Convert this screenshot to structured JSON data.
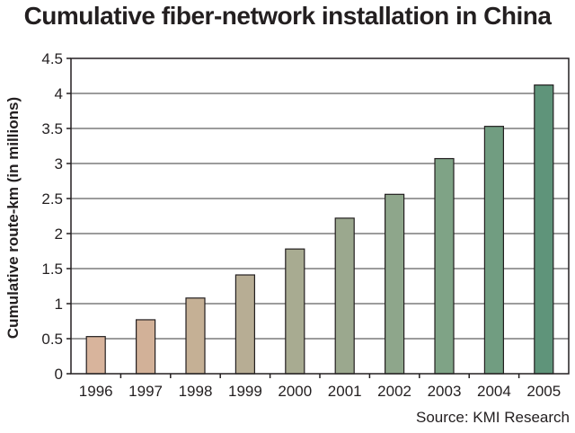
{
  "chart_data": {
    "type": "bar",
    "title": "Cumulative fiber-network installation in China",
    "xlabel": "",
    "ylabel": "Cumulative route-km (in millions)",
    "categories": [
      "1996",
      "1997",
      "1998",
      "1999",
      "2000",
      "2001",
      "2002",
      "2003",
      "2004",
      "2005"
    ],
    "values": [
      0.53,
      0.77,
      1.08,
      1.41,
      1.78,
      2.22,
      2.56,
      3.07,
      3.53,
      4.12
    ],
    "ylim": [
      0,
      4.5
    ],
    "yticks": [
      0,
      0.5,
      1,
      1.5,
      2,
      2.5,
      3,
      3.5,
      4,
      4.5
    ],
    "ytick_labels": [
      "0",
      "0.5",
      "1",
      "1.5",
      "2",
      "2.5",
      "3",
      "3.5",
      "4",
      "4.5"
    ],
    "grid": true,
    "legend": "none",
    "bar_colors": [
      "#d8b49c",
      "#d2b198",
      "#c5b095",
      "#b7ad94",
      "#a8ab91",
      "#9ba88e",
      "#8ea68b",
      "#7fa386",
      "#719d81",
      "#5f947a"
    ],
    "source": "Source: KMI Research"
  }
}
